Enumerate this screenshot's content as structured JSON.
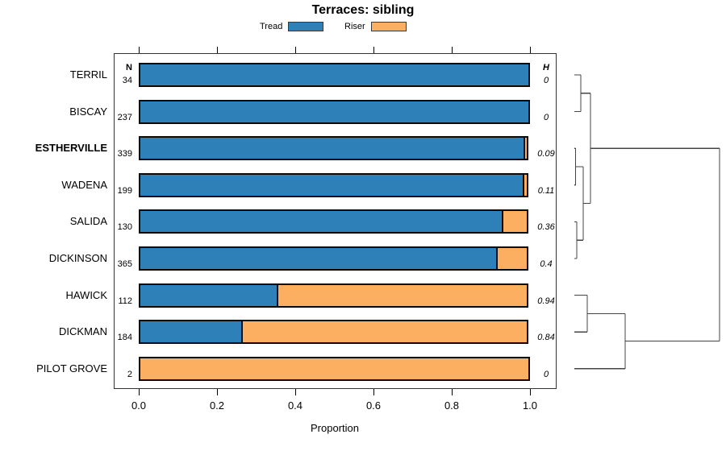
{
  "title": "Terraces: sibling",
  "legend": {
    "items": [
      {
        "label": "Tread",
        "color": "#2E80B8"
      },
      {
        "label": "Riser",
        "color": "#FCAE61"
      }
    ]
  },
  "columns": {
    "n_header": "N",
    "h_header": "H"
  },
  "x_axis": {
    "label": "Proportion",
    "tick_labels": [
      "0.0",
      "0.2",
      "0.4",
      "0.6",
      "0.8",
      "1.0"
    ],
    "tick_values": [
      0.0,
      0.2,
      0.4,
      0.6,
      0.8,
      1.0
    ]
  },
  "colors": {
    "tread": "#2E80B8",
    "riser": "#FCAE61",
    "bar_border": "#0a0a0a",
    "dendrogram_line": "#444444"
  },
  "chart_data": {
    "type": "bar",
    "orientation": "horizontal",
    "stacked": true,
    "title": "Terraces: sibling",
    "xlabel": "Proportion",
    "xlim": [
      0,
      1
    ],
    "series_names": [
      "Tread",
      "Riser"
    ],
    "categories": [
      "TERRIL",
      "BISCAY",
      "ESTHERVILLE",
      "WADENA",
      "SALIDA",
      "DICKINSON",
      "HAWICK",
      "DICKMAN",
      "PILOT GROVE"
    ],
    "rows": [
      {
        "label": "TERRIL",
        "bold": false,
        "n": "34",
        "tread": 1.0,
        "riser": 0.0,
        "h": "0"
      },
      {
        "label": "BISCAY",
        "bold": false,
        "n": "237",
        "tread": 1.0,
        "riser": 0.0,
        "h": "0"
      },
      {
        "label": "ESTHERVILLE",
        "bold": true,
        "n": "339",
        "tread": 0.988,
        "riser": 0.012,
        "h": "0.09"
      },
      {
        "label": "WADENA",
        "bold": false,
        "n": "199",
        "tread": 0.985,
        "riser": 0.015,
        "h": "0.11"
      },
      {
        "label": "SALIDA",
        "bold": false,
        "n": "130",
        "tread": 0.931,
        "riser": 0.069,
        "h": "0.36"
      },
      {
        "label": "DICKINSON",
        "bold": false,
        "n": "365",
        "tread": 0.918,
        "riser": 0.082,
        "h": "0.4"
      },
      {
        "label": "HAWICK",
        "bold": false,
        "n": "112",
        "tread": 0.357,
        "riser": 0.643,
        "h": "0.94"
      },
      {
        "label": "DICKMAN",
        "bold": false,
        "n": "184",
        "tread": 0.266,
        "riser": 0.734,
        "h": "0.84"
      },
      {
        "label": "PILOT GROVE",
        "bold": false,
        "n": "2",
        "tread": 0.0,
        "riser": 1.0,
        "h": "0"
      }
    ],
    "dendrogram": {
      "note": "heights normalized 0=leaf line, 1=root",
      "merges": [
        {
          "id": "A",
          "children": [
            {
              "leaf": 0
            },
            {
              "leaf": 1
            }
          ],
          "height": 0.044
        },
        {
          "id": "B",
          "children": [
            {
              "leaf": 2
            },
            {
              "leaf": 3
            }
          ],
          "height": 0.008
        },
        {
          "id": "C",
          "children": [
            {
              "leaf": 4
            },
            {
              "leaf": 5
            }
          ],
          "height": 0.017
        },
        {
          "id": "BC",
          "children": [
            {
              "node": "B"
            },
            {
              "node": "C"
            }
          ],
          "height": 0.061
        },
        {
          "id": "ABC",
          "children": [
            {
              "node": "A"
            },
            {
              "node": "BC"
            }
          ],
          "height": 0.111
        },
        {
          "id": "D",
          "children": [
            {
              "leaf": 6
            },
            {
              "leaf": 7
            }
          ],
          "height": 0.089
        },
        {
          "id": "E",
          "children": [
            {
              "node": "D"
            },
            {
              "leaf": 8
            }
          ],
          "height": 0.35
        },
        {
          "id": "ROOT",
          "children": [
            {
              "node": "ABC"
            },
            {
              "node": "E"
            }
          ],
          "height": 1.0
        }
      ]
    }
  }
}
